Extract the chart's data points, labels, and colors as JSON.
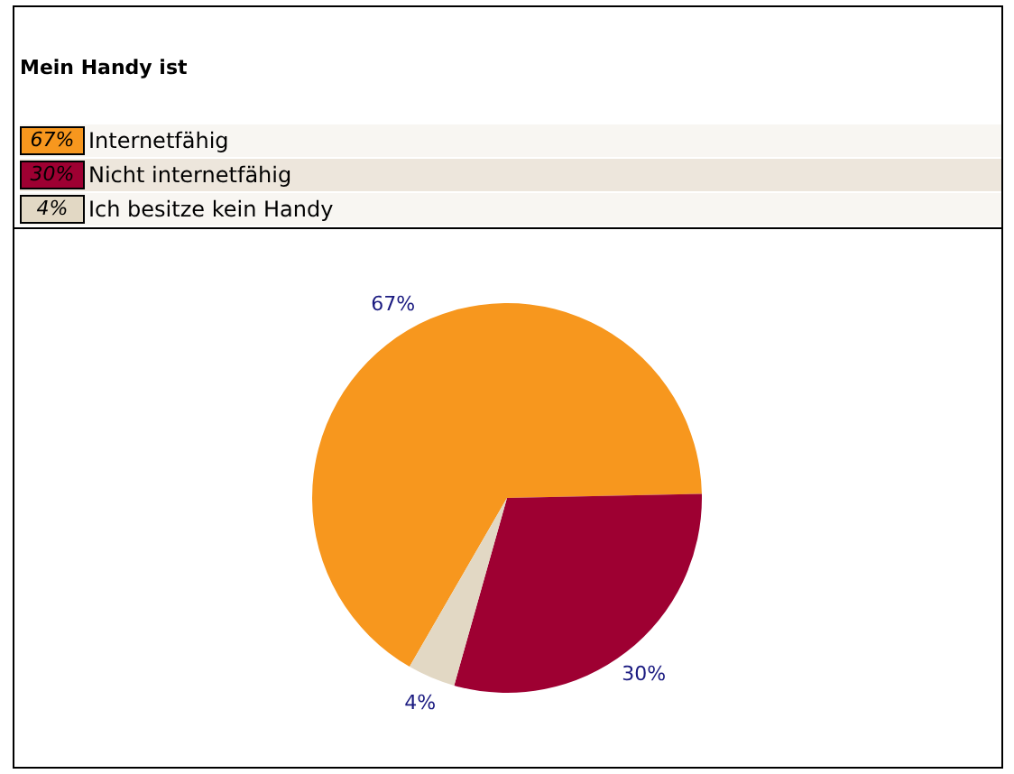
{
  "chart_data": {
    "type": "pie",
    "title": "Mein Handy ist",
    "categories": [
      "Internetfähig",
      "Nicht internetfähig",
      "Ich besitze kein Handy"
    ],
    "values": [
      67,
      30,
      4
    ],
    "value_labels": [
      "67%",
      "30%",
      "4%"
    ],
    "colors": [
      "#f7971e",
      "#9e0032",
      "#e2d8c4"
    ],
    "legend": "top"
  }
}
